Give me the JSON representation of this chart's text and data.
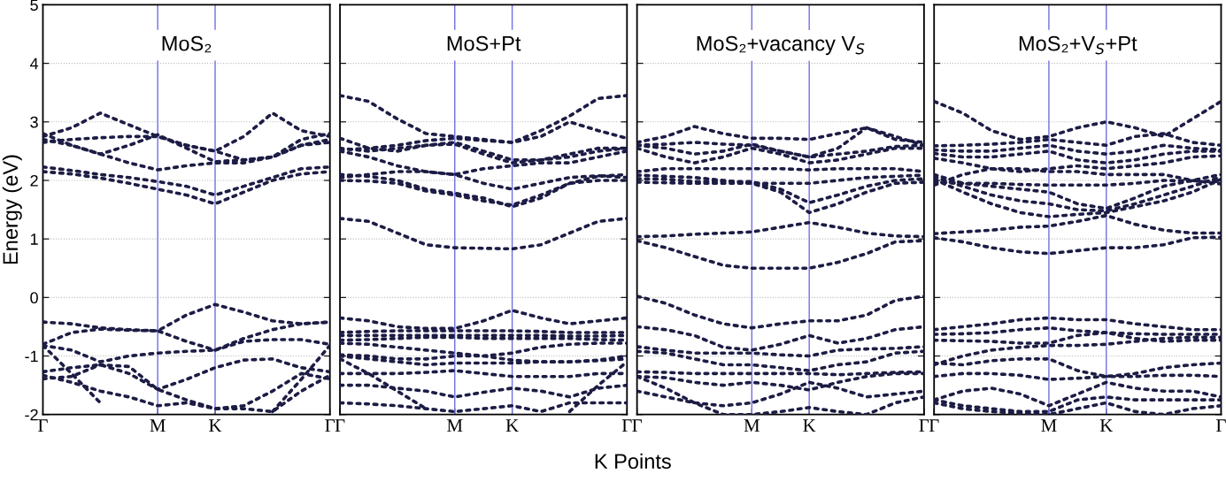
{
  "chart_data": [
    {
      "type": "line",
      "title": "MoS₂",
      "ylabel": "Energy (eV)",
      "categories": [
        "Γ",
        null,
        null,
        null,
        "M",
        null,
        "K",
        null,
        null,
        null,
        "Γ"
      ],
      "ylim": [
        -2,
        5
      ],
      "yticks": [
        -2,
        -1,
        0,
        1,
        2,
        3,
        4,
        5
      ],
      "grid": "y",
      "line_style": "dotted",
      "ref_lines": [
        {
          "axis": "x",
          "value": "M",
          "color": "#6f6fe0"
        },
        {
          "axis": "x",
          "value": "K",
          "color": "#6f6fe0"
        }
      ],
      "series": [
        {
          "color": "#1c1c45",
          "values": [
            2.23,
            2.17,
            2.1,
            2.05,
            1.98,
            1.9,
            1.75,
            1.9,
            2.05,
            2.2,
            2.23
          ]
        },
        {
          "color": "#1c1c45",
          "values": [
            2.15,
            2.11,
            2.04,
            1.95,
            1.85,
            1.75,
            1.6,
            1.8,
            2.0,
            2.11,
            2.15
          ]
        },
        {
          "color": "#1c1c45",
          "values": [
            2.7,
            2.6,
            2.45,
            2.3,
            2.18,
            2.25,
            2.3,
            2.3,
            2.4,
            2.6,
            2.7
          ]
        },
        {
          "color": "#1c1c45",
          "values": [
            2.65,
            2.7,
            2.73,
            2.75,
            2.75,
            2.6,
            2.5,
            2.35,
            2.4,
            2.6,
            2.65
          ]
        },
        {
          "color": "#1c1c45",
          "values": [
            2.75,
            2.9,
            3.15,
            2.95,
            2.75,
            2.6,
            2.5,
            2.75,
            3.15,
            2.85,
            2.75
          ]
        },
        {
          "color": "#1c1c45",
          "values": [
            2.8,
            2.6,
            2.45,
            2.6,
            2.78,
            2.55,
            2.32,
            2.35,
            2.4,
            2.7,
            2.8
          ]
        },
        {
          "color": "#1c1c45",
          "values": [
            -0.42,
            -0.45,
            -0.52,
            -0.55,
            -0.57,
            -0.3,
            -0.12,
            -0.25,
            -0.4,
            -0.45,
            -0.42
          ]
        },
        {
          "color": "#1c1c45",
          "values": [
            -0.8,
            -0.6,
            -0.54,
            -0.56,
            -0.57,
            -0.75,
            -0.9,
            -0.75,
            -0.72,
            -0.72,
            -0.8
          ]
        },
        {
          "color": "#1c1c45",
          "values": [
            -0.82,
            -0.9,
            -1.1,
            -1.0,
            -0.95,
            -0.92,
            -0.9,
            -0.7,
            -0.55,
            -0.45,
            -0.42
          ]
        },
        {
          "color": "#1c1c45",
          "values": [
            -1.27,
            -1.2,
            -1.15,
            -1.3,
            -1.57,
            -1.4,
            -1.2,
            -1.07,
            -1.05,
            -1.2,
            -1.27
          ]
        },
        {
          "color": "#1c1c45",
          "values": [
            -1.39,
            -1.35,
            -1.15,
            -1.18,
            -1.57,
            -1.75,
            -1.9,
            -1.85,
            -1.6,
            -1.3,
            -1.39
          ]
        },
        {
          "color": "#1c1c45",
          "values": [
            -0.82,
            -1.3,
            -1.8,
            null,
            null,
            null,
            null,
            null,
            -1.95,
            -1.4,
            -0.82
          ]
        },
        {
          "color": "#1c1c45",
          "values": [
            -1.33,
            -1.45,
            -1.6,
            -1.7,
            -1.85,
            -1.8,
            -1.9,
            -1.9,
            -1.95,
            -1.6,
            -1.33
          ]
        }
      ]
    },
    {
      "type": "line",
      "title": "MoS+Pt",
      "xlabel": "K Points",
      "categories": [
        "Γ",
        null,
        null,
        null,
        "M",
        null,
        "K",
        null,
        null,
        null,
        "Γ"
      ],
      "ylim": [
        -2,
        5
      ],
      "yticks": [
        -2,
        -1,
        0,
        1,
        2,
        3,
        4,
        5
      ],
      "grid": "y",
      "tick_labels": "x",
      "line_style": "dotted",
      "ref_lines": [
        {
          "axis": "x",
          "value": "M",
          "color": "#6f6fe0"
        },
        {
          "axis": "x",
          "value": "K",
          "color": "#6f6fe0"
        }
      ],
      "series": [
        {
          "color": "#1c1c45",
          "values": [
            1.35,
            1.3,
            1.1,
            0.9,
            0.85,
            0.84,
            0.83,
            0.9,
            1.1,
            1.3,
            1.35
          ]
        },
        {
          "color": "#1c1c45",
          "values": [
            2.1,
            2.07,
            2.0,
            1.85,
            1.78,
            1.7,
            1.55,
            1.7,
            1.95,
            2.07,
            2.1
          ]
        },
        {
          "color": "#1c1c45",
          "values": [
            2.0,
            1.99,
            1.95,
            1.82,
            1.75,
            1.65,
            1.58,
            1.75,
            1.95,
            2.0,
            2.0
          ]
        },
        {
          "color": "#1c1c45",
          "values": [
            2.05,
            2.1,
            2.15,
            2.15,
            2.1,
            1.95,
            1.85,
            1.95,
            2.05,
            2.08,
            2.05
          ]
        },
        {
          "color": "#1c1c45",
          "values": [
            2.5,
            2.4,
            2.25,
            2.15,
            2.1,
            2.2,
            2.25,
            2.3,
            2.3,
            2.4,
            2.5
          ]
        },
        {
          "color": "#1c1c45",
          "values": [
            2.55,
            2.5,
            2.55,
            2.6,
            2.65,
            2.5,
            2.35,
            2.35,
            2.4,
            2.5,
            2.55
          ]
        },
        {
          "color": "#1c1c45",
          "values": [
            2.72,
            2.55,
            2.5,
            2.6,
            2.62,
            2.45,
            2.3,
            2.35,
            2.45,
            2.55,
            2.55
          ]
        },
        {
          "color": "#1c1c45",
          "values": [
            2.52,
            2.55,
            2.6,
            2.68,
            2.72,
            2.68,
            2.65,
            2.75,
            3.0,
            2.85,
            2.72
          ]
        },
        {
          "color": "#1c1c45",
          "values": [
            3.45,
            3.35,
            3.05,
            2.8,
            2.75,
            2.7,
            2.65,
            2.85,
            3.1,
            3.4,
            3.45
          ]
        },
        {
          "color": "#1c1c45",
          "values": [
            -0.35,
            -0.4,
            -0.5,
            -0.53,
            -0.53,
            -0.4,
            -0.22,
            -0.35,
            -0.45,
            -0.4,
            -0.35
          ]
        },
        {
          "color": "#1c1c45",
          "values": [
            -0.6,
            -0.58,
            -0.57,
            -0.57,
            -0.57,
            -0.57,
            -0.57,
            -0.58,
            -0.6,
            -0.6,
            -0.6
          ]
        },
        {
          "color": "#1c1c45",
          "values": [
            -0.65,
            -0.65,
            -0.65,
            -0.65,
            -0.65,
            -0.65,
            -0.65,
            -0.65,
            -0.66,
            -0.66,
            -0.65
          ]
        },
        {
          "color": "#1c1c45",
          "values": [
            -0.73,
            -0.72,
            -0.7,
            -0.68,
            -0.68,
            -0.7,
            -0.7,
            -0.7,
            -0.7,
            -0.72,
            -0.73
          ]
        },
        {
          "color": "#1c1c45",
          "values": [
            -0.78,
            -0.8,
            -0.85,
            -0.9,
            -0.95,
            -1.0,
            -0.95,
            -0.85,
            -0.8,
            -0.78,
            -0.78
          ]
        },
        {
          "color": "#1c1c45",
          "values": [
            -0.98,
            -1.0,
            -1.05,
            -1.05,
            -1.0,
            -1.0,
            -1.07,
            -1.1,
            -1.1,
            -1.07,
            -1.0
          ]
        },
        {
          "color": "#1c1c45",
          "values": [
            -1.0,
            -1.05,
            -1.1,
            -1.15,
            -1.12,
            -1.12,
            -1.12,
            -1.1,
            -1.1,
            -1.08,
            -1.05
          ]
        },
        {
          "color": "#1c1c45",
          "values": [
            -1.3,
            -1.3,
            -1.3,
            -1.28,
            -1.25,
            -1.3,
            -1.35,
            -1.35,
            -1.35,
            -1.3,
            -1.3
          ]
        },
        {
          "color": "#1c1c45",
          "values": [
            -1.5,
            -1.5,
            -1.55,
            -1.6,
            -1.7,
            -1.62,
            -1.55,
            -1.6,
            -1.7,
            -1.55,
            -1.5
          ]
        },
        {
          "color": "#1c1c45",
          "values": [
            -1.8,
            -1.82,
            -1.85,
            -1.9,
            -1.95,
            -1.9,
            -1.85,
            -1.95,
            -1.8,
            -1.8,
            -1.8
          ]
        },
        {
          "color": "#1c1c45",
          "values": [
            -1.05,
            -1.3,
            -1.6,
            -1.9,
            null,
            null,
            null,
            null,
            -1.95,
            -1.5,
            -1.1
          ]
        }
      ]
    },
    {
      "type": "line",
      "title": "MoS₂+vacancy V$_{S}$",
      "categories": [
        "Γ",
        null,
        null,
        null,
        "M",
        null,
        "K",
        null,
        null,
        null,
        "Γ"
      ],
      "ylim": [
        -2,
        5
      ],
      "yticks": [
        -2,
        -1,
        0,
        1,
        2,
        3,
        4,
        5
      ],
      "grid": "y",
      "tick_labels": "x",
      "line_style": "dotted",
      "ref_lines": [
        {
          "axis": "x",
          "value": "M",
          "color": "#6f6fe0"
        },
        {
          "axis": "x",
          "value": "K",
          "color": "#6f6fe0"
        }
      ],
      "series": [
        {
          "color": "#1c1c45",
          "values": [
            0.97,
            0.85,
            0.7,
            0.55,
            0.5,
            0.5,
            0.5,
            0.6,
            0.75,
            0.95,
            0.97
          ]
        },
        {
          "color": "#1c1c45",
          "values": [
            1.04,
            1.05,
            1.08,
            1.1,
            1.12,
            1.2,
            1.28,
            1.2,
            1.1,
            1.05,
            1.04
          ]
        },
        {
          "color": "#1c1c45",
          "values": [
            1.97,
            1.96,
            1.95,
            1.95,
            1.95,
            1.8,
            1.45,
            1.6,
            1.8,
            1.95,
            1.97
          ]
        },
        {
          "color": "#1c1c45",
          "values": [
            2.03,
            2.02,
            1.98,
            1.98,
            1.98,
            1.85,
            1.62,
            1.75,
            1.9,
            2.0,
            2.03
          ]
        },
        {
          "color": "#1c1c45",
          "values": [
            2.09,
            2.07,
            2.05,
            2.0,
            1.95,
            1.95,
            1.95,
            2.0,
            2.05,
            2.07,
            2.09
          ]
        },
        {
          "color": "#1c1c45",
          "values": [
            2.15,
            2.2,
            2.2,
            2.2,
            2.2,
            2.2,
            2.18,
            2.2,
            2.2,
            2.2,
            2.15
          ]
        },
        {
          "color": "#1c1c45",
          "values": [
            2.55,
            2.4,
            2.3,
            2.4,
            2.55,
            2.45,
            2.3,
            2.35,
            2.45,
            2.55,
            2.55
          ]
        },
        {
          "color": "#1c1c45",
          "values": [
            2.6,
            2.55,
            2.45,
            2.5,
            2.62,
            2.5,
            2.4,
            2.45,
            2.5,
            2.58,
            2.6
          ]
        },
        {
          "color": "#1c1c45",
          "values": [
            2.6,
            2.62,
            2.65,
            2.62,
            2.6,
            2.5,
            2.4,
            2.55,
            2.9,
            2.75,
            2.6
          ]
        },
        {
          "color": "#1c1c45",
          "values": [
            2.65,
            2.75,
            2.92,
            2.8,
            2.72,
            2.72,
            2.7,
            2.8,
            2.9,
            2.7,
            2.65
          ]
        },
        {
          "color": "#1c1c45",
          "values": [
            0.02,
            -0.1,
            -0.3,
            -0.45,
            -0.52,
            -0.45,
            -0.4,
            -0.4,
            -0.3,
            -0.05,
            0.02
          ]
        },
        {
          "color": "#1c1c45",
          "values": [
            -0.5,
            -0.55,
            -0.65,
            -0.85,
            -0.9,
            -0.8,
            -0.65,
            -0.78,
            -0.7,
            -0.55,
            -0.5
          ]
        },
        {
          "color": "#1c1c45",
          "values": [
            -0.84,
            -0.9,
            -0.95,
            -0.95,
            -0.95,
            -0.98,
            -1.0,
            -0.9,
            -0.88,
            -0.87,
            -0.84
          ]
        },
        {
          "color": "#1c1c45",
          "values": [
            -0.92,
            -0.95,
            -1.05,
            -1.15,
            -1.15,
            -1.2,
            -1.25,
            -1.15,
            -1.1,
            -0.95,
            -0.92
          ]
        },
        {
          "color": "#1c1c45",
          "values": [
            -1.27,
            -1.28,
            -1.3,
            -1.3,
            -1.3,
            -1.3,
            -1.3,
            -1.32,
            -1.3,
            -1.28,
            -1.27
          ]
        },
        {
          "color": "#1c1c45",
          "values": [
            -1.35,
            -1.37,
            -1.45,
            -1.5,
            -1.45,
            -1.5,
            -1.58,
            -1.45,
            -1.35,
            -1.3,
            -1.3
          ]
        },
        {
          "color": "#1c1c45",
          "values": [
            -1.6,
            -1.7,
            -1.8,
            -1.85,
            -1.8,
            -1.65,
            -1.45,
            -1.55,
            -1.7,
            -1.65,
            -1.6
          ]
        },
        {
          "color": "#1c1c45",
          "values": [
            -1.35,
            -1.55,
            -1.8,
            -2.0,
            -2.0,
            -1.95,
            -1.88,
            -1.95,
            -2.0,
            -1.8,
            -1.7
          ]
        }
      ]
    },
    {
      "type": "line",
      "title": "MoS₂+V$_{S}$+Pt",
      "categories": [
        "Γ",
        null,
        null,
        null,
        "M",
        null,
        "K",
        null,
        null,
        null,
        "Γ"
      ],
      "ylim": [
        -2,
        5
      ],
      "yticks": [
        -2,
        -1,
        0,
        1,
        2,
        3,
        4,
        5
      ],
      "grid": "y",
      "tick_labels": "x",
      "line_style": "dotted",
      "ref_lines": [
        {
          "axis": "x",
          "value": "M",
          "color": "#6f6fe0"
        },
        {
          "axis": "x",
          "value": "K",
          "color": "#6f6fe0"
        }
      ],
      "series": [
        {
          "color": "#1c1c45",
          "values": [
            1.02,
            0.95,
            0.85,
            0.78,
            0.75,
            0.8,
            0.85,
            0.85,
            0.9,
            1.02,
            1.03
          ]
        },
        {
          "color": "#1c1c45",
          "values": [
            1.09,
            1.12,
            1.15,
            1.2,
            1.22,
            1.3,
            1.4,
            1.25,
            1.15,
            1.1,
            1.1
          ]
        },
        {
          "color": "#1c1c45",
          "values": [
            2.02,
            1.8,
            1.6,
            1.45,
            1.38,
            1.42,
            1.45,
            1.55,
            1.65,
            1.8,
            2.02
          ]
        },
        {
          "color": "#1c1c45",
          "values": [
            2.06,
            1.9,
            1.75,
            1.65,
            1.6,
            1.5,
            1.48,
            1.6,
            1.75,
            1.9,
            2.06
          ]
        },
        {
          "color": "#1c1c45",
          "values": [
            2.1,
            1.95,
            1.9,
            1.85,
            1.8,
            1.6,
            1.52,
            1.7,
            1.9,
            2.0,
            2.1
          ]
        },
        {
          "color": "#1c1c45",
          "values": [
            1.97,
            1.95,
            1.95,
            1.93,
            1.92,
            1.92,
            1.92,
            1.95,
            2.0,
            1.99,
            1.98
          ]
        },
        {
          "color": "#1c1c45",
          "values": [
            1.92,
            2.1,
            2.2,
            2.2,
            2.15,
            2.15,
            2.1,
            2.1,
            2.1,
            2.0,
            1.94
          ]
        },
        {
          "color": "#1c1c45",
          "values": [
            2.38,
            2.3,
            2.2,
            2.15,
            2.2,
            2.25,
            2.2,
            2.25,
            2.3,
            2.4,
            2.42
          ]
        },
        {
          "color": "#1c1c45",
          "values": [
            2.46,
            2.4,
            2.4,
            2.45,
            2.5,
            2.35,
            2.3,
            2.35,
            2.45,
            2.5,
            2.5
          ]
        },
        {
          "color": "#1c1c45",
          "values": [
            2.52,
            2.5,
            2.5,
            2.55,
            2.6,
            2.5,
            2.45,
            2.5,
            2.6,
            2.55,
            2.52
          ]
        },
        {
          "color": "#1c1c45",
          "values": [
            2.59,
            2.6,
            2.62,
            2.65,
            2.7,
            2.65,
            2.6,
            2.75,
            2.8,
            2.65,
            2.6
          ]
        },
        {
          "color": "#1c1c45",
          "values": [
            3.35,
            3.15,
            2.85,
            2.7,
            2.75,
            2.9,
            3.0,
            2.9,
            2.75,
            3.05,
            3.35
          ]
        },
        {
          "color": "#1c1c45",
          "values": [
            -0.55,
            -0.5,
            -0.45,
            -0.38,
            -0.35,
            -0.38,
            -0.38,
            -0.45,
            -0.5,
            -0.55,
            -0.55
          ]
        },
        {
          "color": "#1c1c45",
          "values": [
            -0.63,
            -0.62,
            -0.6,
            -0.55,
            -0.52,
            -0.57,
            -0.6,
            -0.62,
            -0.63,
            -0.63,
            -0.63
          ]
        },
        {
          "color": "#1c1c45",
          "values": [
            -0.73,
            -0.74,
            -0.75,
            -0.78,
            -0.78,
            -0.65,
            -0.6,
            -0.7,
            -0.75,
            -0.73,
            -0.73
          ]
        },
        {
          "color": "#1c1c45",
          "values": [
            -1.15,
            -1.0,
            -0.9,
            -0.85,
            -0.82,
            -0.82,
            -0.8,
            -0.75,
            -0.7,
            -0.68,
            -0.68
          ]
        },
        {
          "color": "#1c1c45",
          "values": [
            -1.12,
            -1.15,
            -1.08,
            -1.05,
            -1.05,
            -1.25,
            -1.35,
            -1.3,
            -1.2,
            -1.15,
            -1.12
          ]
        },
        {
          "color": "#1c1c45",
          "values": [
            -1.35,
            -1.3,
            -1.3,
            -1.33,
            -1.4,
            -1.38,
            -1.35,
            -1.35,
            -1.33,
            -1.33,
            -1.35
          ]
        },
        {
          "color": "#1c1c45",
          "values": [
            -1.75,
            -1.6,
            -1.55,
            -1.65,
            -1.85,
            -1.65,
            -1.45,
            -1.55,
            -1.6,
            -1.6,
            -1.7
          ]
        },
        {
          "color": "#1c1c45",
          "values": [
            -1.75,
            -1.85,
            -1.9,
            -1.95,
            -1.95,
            -1.75,
            -1.7,
            -1.75,
            -1.75,
            -1.75,
            -1.75
          ]
        },
        {
          "color": "#1c1c45",
          "values": [
            -1.8,
            -1.9,
            -1.95,
            -1.98,
            -2.0,
            -1.9,
            -1.8,
            -1.95,
            -2.0,
            -1.9,
            -1.85
          ]
        }
      ]
    }
  ]
}
